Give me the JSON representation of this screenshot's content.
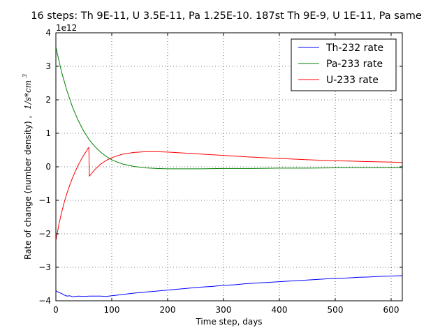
{
  "chart_data": {
    "type": "line",
    "title": "16 steps: Th 9E-11, U 3.5E-11, Pa 1.25E-10. 187st Th 9E-9, U 1E-11, Pa same",
    "xlabel": "Time step, days",
    "ylabel": "Rate of change (number density) , 1/s*cm^3",
    "ylabel_main": "Rate of change (number density) ,",
    "ylabel_unit": "1/s*cm",
    "ylabel_unit_exp": "3",
    "y_offset_label": "1e12",
    "xlim": [
      0,
      620
    ],
    "ylim": [
      -4,
      4
    ],
    "y_scale": "1e12",
    "xticks": [
      0,
      100,
      200,
      300,
      400,
      500,
      600
    ],
    "yticks": [
      -4,
      -3,
      -2,
      -1,
      0,
      1,
      2,
      3,
      4
    ],
    "grid": true,
    "legend_position": "top-right",
    "series": [
      {
        "name": "Th-232 rate",
        "color": "#0000ff",
        "x": [
          0,
          5,
          10,
          15,
          20,
          25,
          30,
          35,
          40,
          50,
          60,
          70,
          80,
          90,
          100,
          110,
          120,
          140,
          160,
          180,
          200,
          220,
          240,
          260,
          280,
          300,
          320,
          340,
          360,
          380,
          400,
          420,
          440,
          460,
          480,
          500,
          520,
          540,
          560,
          580,
          600,
          620
        ],
        "values": [
          -3.7,
          -3.75,
          -3.78,
          -3.83,
          -3.86,
          -3.85,
          -3.88,
          -3.87,
          -3.86,
          -3.87,
          -3.86,
          -3.86,
          -3.86,
          -3.87,
          -3.85,
          -3.83,
          -3.81,
          -3.77,
          -3.74,
          -3.71,
          -3.68,
          -3.65,
          -3.62,
          -3.59,
          -3.57,
          -3.54,
          -3.52,
          -3.49,
          -3.47,
          -3.45,
          -3.43,
          -3.41,
          -3.39,
          -3.37,
          -3.35,
          -3.33,
          -3.32,
          -3.3,
          -3.29,
          -3.27,
          -3.26,
          -3.25
        ]
      },
      {
        "name": "Pa-233 rate",
        "color": "#008000",
        "x": [
          0,
          10,
          20,
          30,
          40,
          50,
          60,
          70,
          80,
          90,
          100,
          110,
          120,
          140,
          160,
          180,
          200,
          220,
          240,
          260,
          300,
          350,
          400,
          450,
          500,
          550,
          600,
          620
        ],
        "values": [
          3.57,
          2.84,
          2.26,
          1.77,
          1.38,
          1.06,
          0.8,
          0.6,
          0.44,
          0.31,
          0.21,
          0.14,
          0.08,
          0.01,
          -0.03,
          -0.05,
          -0.06,
          -0.06,
          -0.06,
          -0.06,
          -0.05,
          -0.05,
          -0.04,
          -0.04,
          -0.03,
          -0.03,
          -0.03,
          -0.03
        ]
      },
      {
        "name": "U-233 rate",
        "color": "#ff0000",
        "x": [
          0,
          5,
          10,
          15,
          20,
          25,
          30,
          35,
          40,
          45,
          50,
          55,
          57,
          59,
          60,
          70,
          80,
          90,
          100,
          110,
          120,
          140,
          160,
          180,
          200,
          220,
          240,
          260,
          280,
          300,
          350,
          400,
          450,
          500,
          550,
          600,
          620
        ],
        "values": [
          -2.2,
          -1.75,
          -1.38,
          -1.06,
          -0.78,
          -0.54,
          -0.32,
          -0.13,
          0.05,
          0.21,
          0.35,
          0.48,
          0.54,
          0.58,
          -0.28,
          -0.08,
          0.08,
          0.19,
          0.27,
          0.33,
          0.38,
          0.43,
          0.45,
          0.45,
          0.44,
          0.42,
          0.4,
          0.38,
          0.36,
          0.34,
          0.29,
          0.25,
          0.21,
          0.18,
          0.16,
          0.14,
          0.13
        ]
      }
    ]
  }
}
